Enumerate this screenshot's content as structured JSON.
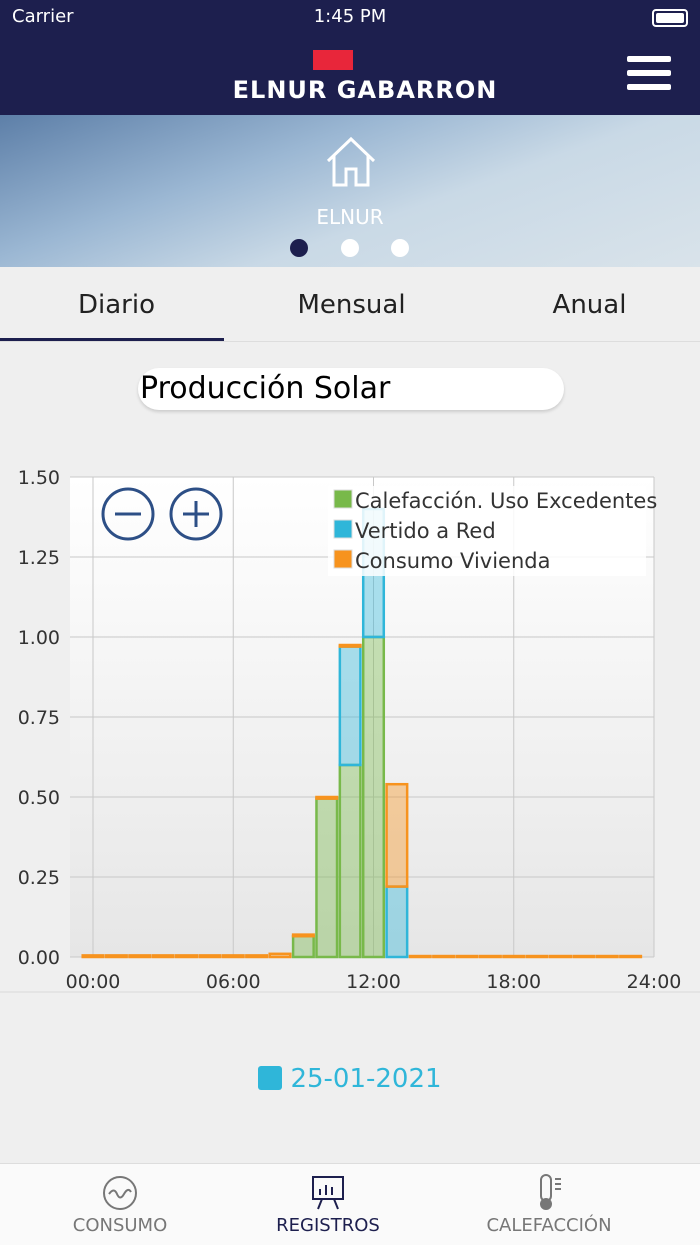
{
  "status": {
    "carrier": "Carrier",
    "time": "1:45 PM"
  },
  "header": {
    "brand": "ELNUR GABARRON"
  },
  "banner": {
    "label": "ELNUR"
  },
  "tabs": [
    "Diario",
    "Mensual",
    "Anual"
  ],
  "chart_data": {
    "type": "bar",
    "stacked": true,
    "title": "Producción Solar",
    "x": [
      0,
      1,
      2,
      3,
      4,
      5,
      6,
      7,
      8,
      9,
      10,
      11,
      12,
      13,
      14,
      15,
      16,
      17,
      18,
      19,
      20,
      21,
      22,
      23
    ],
    "series": [
      {
        "name": "Calefacción. Uso Excedentes",
        "color": "#78b94a",
        "values": [
          0,
          0,
          0,
          0,
          0,
          0,
          0,
          0,
          0,
          0.065,
          0.495,
          0.6,
          1.0,
          0,
          0,
          0,
          0,
          0,
          0,
          0,
          0,
          0,
          0,
          0
        ]
      },
      {
        "name": "Vertido a Red",
        "color": "#2fb6d9",
        "values": [
          0,
          0,
          0,
          0,
          0,
          0,
          0,
          0,
          0,
          0,
          0,
          0.37,
          0.4,
          0.22,
          0,
          0,
          0,
          0,
          0,
          0,
          0,
          0,
          0,
          0
        ]
      },
      {
        "name": "Consumo Vivienda",
        "color": "#f7931e",
        "values": [
          0.005,
          0.005,
          0.005,
          0.005,
          0.005,
          0.005,
          0.005,
          0.005,
          0.01,
          0.005,
          0.005,
          0.005,
          0,
          0.32,
          0.003,
          0.003,
          0.003,
          0.003,
          0.003,
          0.003,
          0.003,
          0.003,
          0.003,
          0.003
        ]
      }
    ],
    "xlim": [
      0,
      24
    ],
    "xticks": [
      {
        "value": 0,
        "label": "00:00"
      },
      {
        "value": 6,
        "label": "06:00"
      },
      {
        "value": 12,
        "label": "12:00"
      },
      {
        "value": 18,
        "label": "18:00"
      },
      {
        "value": 24,
        "label": "24:00"
      }
    ],
    "ylim": [
      0,
      1.5
    ],
    "yticks": [
      {
        "value": 0,
        "label": "0.00"
      },
      0.25,
      {
        "value": 0.5,
        "label": "0.50"
      },
      0.75,
      {
        "value": 1,
        "label": "1.00"
      },
      1.25,
      {
        "value": 1.5,
        "label": "1.50"
      }
    ],
    "grid": true,
    "legend": "top-right"
  },
  "date": "25-01-2021",
  "nav": [
    "CONSUMO",
    "REGISTROS",
    "CALEFACCIÓN"
  ]
}
